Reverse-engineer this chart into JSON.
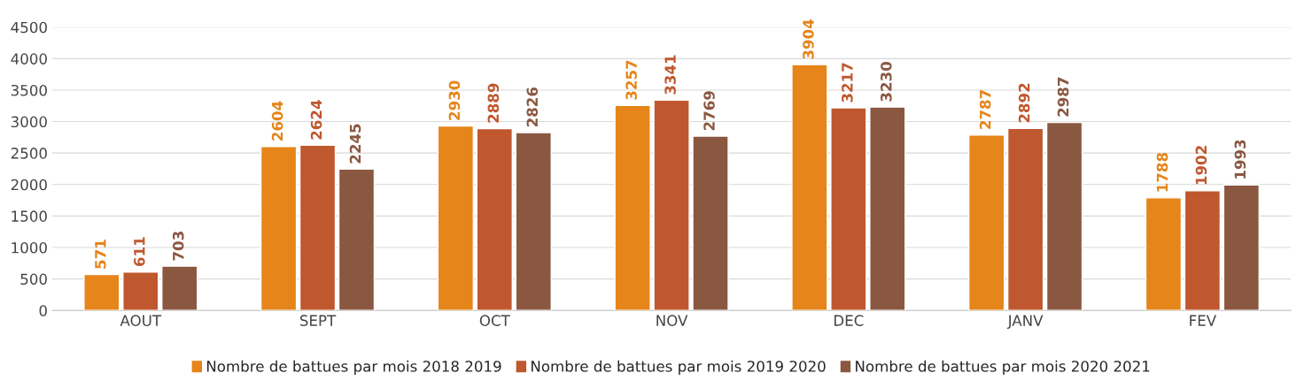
{
  "chart_data": {
    "type": "bar",
    "categories": [
      "AOUT",
      "SEPT",
      "OCT",
      "NOV",
      "DEC",
      "JANV",
      "FEV"
    ],
    "series": [
      {
        "name": "Nombre de battues par mois 2018 2019",
        "color": "#e5851a",
        "values": [
          571,
          2604,
          2930,
          3257,
          3904,
          2787,
          1788
        ]
      },
      {
        "name": "Nombre de battues par mois 2019 2020",
        "color": "#bf582e",
        "values": [
          611,
          2624,
          2889,
          3341,
          3217,
          2892,
          1902
        ]
      },
      {
        "name": "Nombre de battues par mois 2020 2021",
        "color": "#8a5741",
        "values": [
          703,
          2245,
          2826,
          2769,
          3230,
          2987,
          1993
        ]
      }
    ],
    "ylim": [
      0,
      4500
    ],
    "yticks": [
      0,
      500,
      1000,
      1500,
      2000,
      2500,
      3000,
      3500,
      4000,
      4500
    ],
    "grid": "y",
    "legend": "bottom",
    "data_labels": true
  }
}
